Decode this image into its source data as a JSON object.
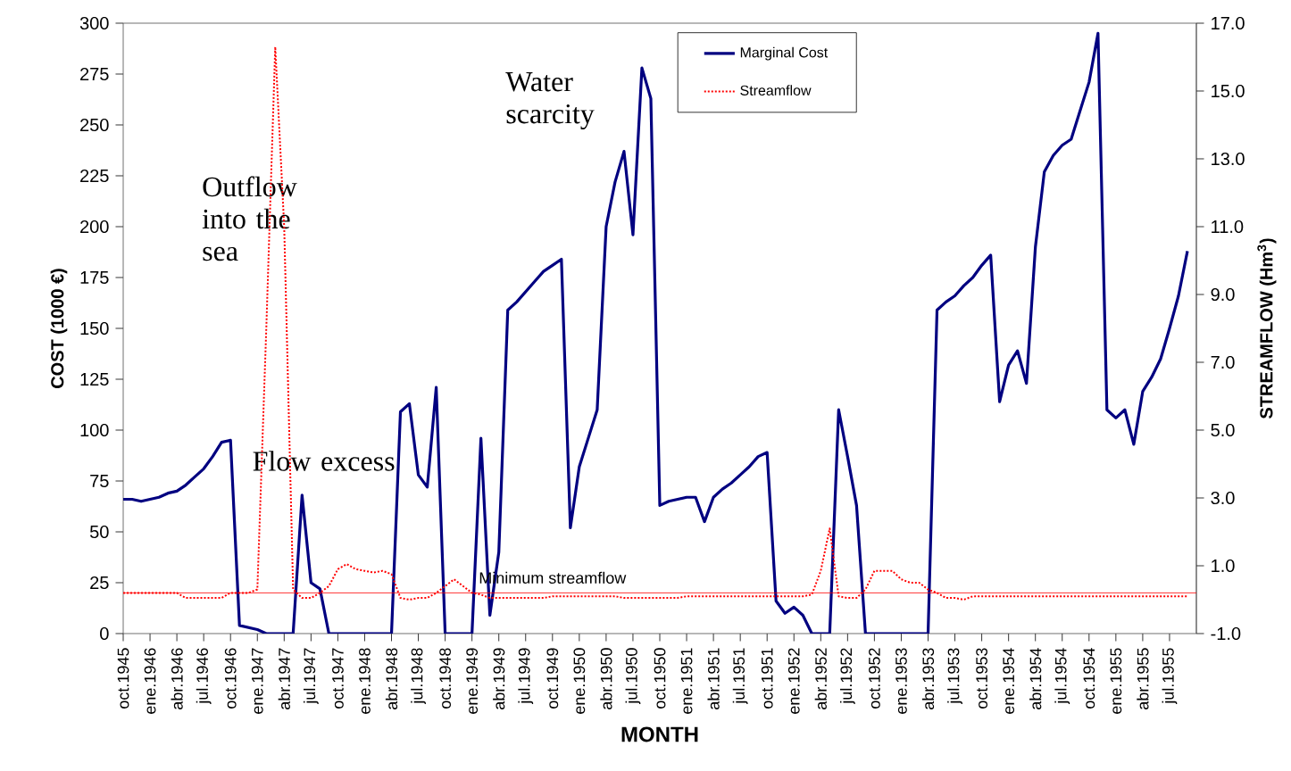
{
  "chart_data": {
    "type": "line",
    "xlabel": "MONTH",
    "ylabel": "COST (1000 €)",
    "y2label": "STREAMFLOW (Hm$^{3}$)",
    "categories": [
      "oct.1945",
      null,
      null,
      "ene.1946",
      null,
      null,
      "abr.1946",
      null,
      null,
      "jul.1946",
      null,
      null,
      "oct.1946",
      null,
      null,
      "ene.1947",
      null,
      null,
      "abr.1947",
      null,
      null,
      "jul.1947",
      null,
      null,
      "oct.1947",
      null,
      null,
      "ene.1948",
      null,
      null,
      "abr.1948",
      null,
      null,
      "jul.1948",
      null,
      null,
      "oct.1948",
      null,
      null,
      "ene.1949",
      null,
      null,
      "abr.1949",
      null,
      null,
      "jul.1949",
      null,
      null,
      "oct.1949",
      null,
      null,
      "ene.1950",
      null,
      null,
      "abr.1950",
      null,
      null,
      "jul.1950",
      null,
      null,
      "oct.1950",
      null,
      null,
      "ene.1951",
      null,
      null,
      "abr.1951",
      null,
      null,
      "jul.1951",
      null,
      null,
      "oct.1951",
      null,
      null,
      "ene.1952",
      null,
      null,
      "abr.1952",
      null,
      null,
      "jul.1952",
      null,
      null,
      "oct.1952",
      null,
      null,
      "ene.1953",
      null,
      null,
      "abr.1953",
      null,
      null,
      "jul.1953",
      null,
      null,
      "oct.1953",
      null,
      null,
      "ene.1954",
      null,
      null,
      "abr.1954",
      null,
      null,
      "jul.1954",
      null,
      null,
      "oct.1954",
      null,
      null,
      "ene.1955",
      null,
      null,
      "abr.1955",
      null,
      null,
      "jul.1955",
      null,
      null
    ],
    "series": [
      {
        "name": "Marginal Cost",
        "color": "#000080",
        "line_style": "solid",
        "values": [
          66,
          66,
          65,
          66,
          67,
          69,
          70,
          73,
          77,
          81,
          87,
          94,
          95,
          4,
          3,
          2,
          0,
          0,
          0,
          0,
          68,
          25,
          22,
          0,
          0,
          0,
          0,
          0,
          0,
          0,
          0,
          109,
          113,
          78,
          72,
          121,
          0,
          0,
          0,
          0,
          96,
          9,
          40,
          159,
          163,
          168,
          173,
          178,
          181,
          184,
          52,
          82,
          96,
          110,
          200,
          222,
          237,
          196,
          278,
          263,
          63,
          65,
          66,
          67,
          67,
          55,
          67,
          71,
          74,
          78,
          82,
          87,
          89,
          16,
          10,
          13,
          9,
          0,
          0,
          0,
          110,
          87,
          63,
          0,
          0,
          0,
          0,
          0,
          0,
          0,
          0,
          159,
          163,
          166,
          171,
          175,
          181,
          186,
          114,
          132,
          139,
          123,
          190,
          227,
          235,
          240,
          243,
          257,
          271,
          295,
          110,
          106,
          110,
          93,
          119,
          126,
          135,
          150,
          166,
          188
        ]
      },
      {
        "name": "Streamflow",
        "color": "#ff0000",
        "line_style": "dotted",
        "axis": "y2",
        "values": [
          0.2,
          0.2,
          0.2,
          0.2,
          0.2,
          0.2,
          0.2,
          0.05,
          0.05,
          0.05,
          0.05,
          0.05,
          0.2,
          0.2,
          0.2,
          0.3,
          8.0,
          16.3,
          11.0,
          0.3,
          0.05,
          0.05,
          0.2,
          0.4,
          0.9,
          1.05,
          0.9,
          0.85,
          0.8,
          0.85,
          0.75,
          0.05,
          0,
          0.05,
          0.05,
          0.2,
          0.4,
          0.6,
          0.4,
          0.2,
          0.15,
          0.05,
          0.05,
          0.05,
          0.05,
          0.05,
          0.05,
          0.05,
          0.1,
          0.1,
          0.1,
          0.1,
          0.1,
          0.1,
          0.1,
          0.1,
          0.05,
          0.05,
          0.05,
          0.05,
          0.05,
          0.05,
          0.05,
          0.1,
          0.1,
          0.1,
          0.1,
          0.1,
          0.1,
          0.1,
          0.1,
          0.1,
          0.1,
          0.1,
          0.1,
          0.1,
          0.1,
          0.15,
          0.85,
          2.1,
          0.1,
          0.05,
          0.05,
          0.3,
          0.85,
          0.85,
          0.85,
          0.6,
          0.5,
          0.5,
          0.3,
          0.2,
          0.05,
          0.05,
          0,
          0.1,
          0.1,
          0.1,
          0.1,
          0.1,
          0.1,
          0.1,
          0.1,
          0.1,
          0.1,
          0.1,
          0.1,
          0.1,
          0.1,
          0.1,
          0.1,
          0.1,
          0.1,
          0.1,
          0.1,
          0.1,
          0.1,
          0.1,
          0.1,
          0.1
        ]
      }
    ],
    "ylim": [
      0,
      300
    ],
    "yticks": [
      0,
      25,
      50,
      75,
      100,
      125,
      150,
      175,
      200,
      225,
      250,
      275,
      300
    ],
    "y2lim": [
      -1,
      17
    ],
    "y2ticks": [
      {
        "value": -1,
        "label": "-1.0"
      },
      {
        "value": 1,
        "label": "1.0"
      },
      {
        "value": 3,
        "label": "3.0"
      },
      {
        "value": 5,
        "label": "5.0"
      },
      {
        "value": 7,
        "label": "7.0"
      },
      {
        "value": 9,
        "label": "9.0"
      },
      {
        "value": 11,
        "label": "11.0"
      },
      {
        "value": 13,
        "label": "13.0"
      },
      {
        "value": 15,
        "label": "15.0"
      },
      {
        "value": 17,
        "label": "17.0"
      }
    ],
    "ref_lines": [
      {
        "axis": "y2",
        "value": 0.2,
        "label": "Minimum streamflow",
        "color": "#ff0000"
      }
    ],
    "annotations": [
      "Outflow into the sea",
      "Flow excess",
      "Water scarcity"
    ],
    "legend": "top right"
  }
}
